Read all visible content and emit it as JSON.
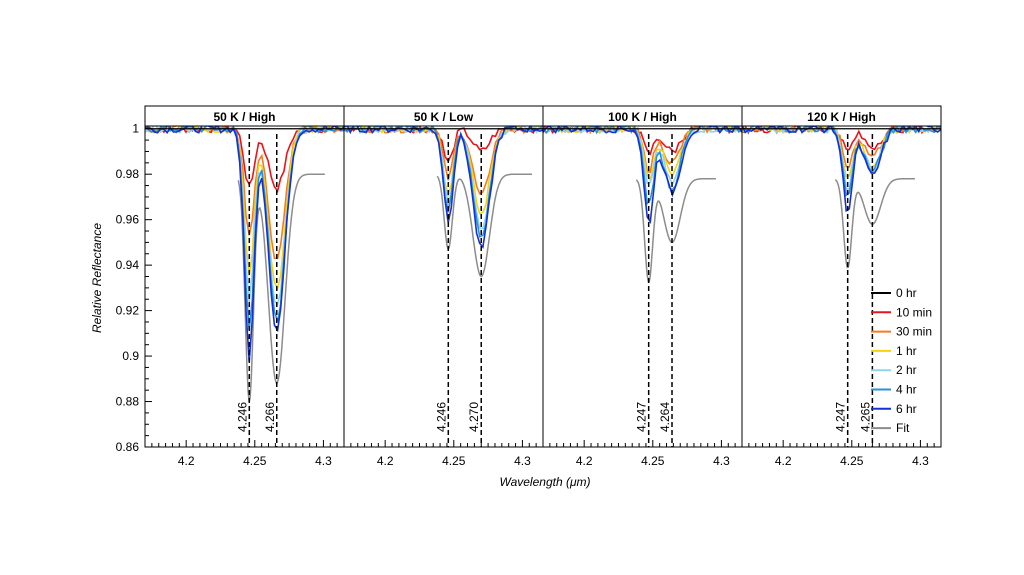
{
  "chart_data": {
    "type": "line",
    "panel_count": 4,
    "ylabel": "Relative Reflectance",
    "xlabel": "Wavelength (μm)",
    "xlim": [
      4.17,
      4.315
    ],
    "ylim": [
      0.86,
      1.01
    ],
    "x_ticks": [
      4.2,
      4.25,
      4.3
    ],
    "x_tick_labels": [
      "4.2",
      "4.25",
      "4.3"
    ],
    "y_ticks": [
      0.86,
      0.88,
      0.9,
      0.92,
      0.94,
      0.96,
      0.98,
      1
    ],
    "y_tick_labels": [
      "0.86",
      "0.88",
      "0.9",
      "0.92",
      "0.94",
      "0.96",
      "0.98",
      "1"
    ],
    "legend": {
      "placement": "bottom-right",
      "entries": [
        {
          "name": "0 hr",
          "color": "#000000"
        },
        {
          "name": "10 min",
          "color": "#e8141b"
        },
        {
          "name": "30 min",
          "color": "#f47b20"
        },
        {
          "name": "1 hr",
          "color": "#f6d312"
        },
        {
          "name": "2 hr",
          "color": "#8ed3f1"
        },
        {
          "name": "4 hr",
          "color": "#2792d6"
        },
        {
          "name": "6 hr",
          "color": "#1432d3"
        },
        {
          "name": "Fit",
          "color": "#8c8c8c"
        }
      ]
    },
    "panels": [
      {
        "title": "50 K / High",
        "peaks": [
          {
            "x": 4.246,
            "label": "4.246"
          },
          {
            "x": 4.266,
            "label": "4.266"
          }
        ],
        "series": [
          {
            "name": "10 min",
            "depths": [
              0.026,
              0.026
            ]
          },
          {
            "name": "30 min",
            "depths": [
              0.048,
              0.058
            ]
          },
          {
            "name": "1 hr",
            "depths": [
              0.064,
              0.072
            ]
          },
          {
            "name": "2 hr",
            "depths": [
              0.075,
              0.079
            ]
          },
          {
            "name": "4 hr",
            "depths": [
              0.088,
              0.085
            ]
          },
          {
            "name": "6 hr",
            "depths": [
              0.101,
              0.089
            ]
          }
        ],
        "fit": {
          "x_start": 4.238,
          "x_end": 4.301,
          "base": 0.98,
          "depths": [
            0.1,
            0.092
          ]
        }
      },
      {
        "title": "50 K / Low",
        "peaks": [
          {
            "x": 4.246,
            "label": "4.246"
          },
          {
            "x": 4.27,
            "label": "4.270"
          }
        ],
        "series": [
          {
            "name": "10 min",
            "depths": [
              0.015,
              0.01
            ]
          },
          {
            "name": "30 min",
            "depths": [
              0.022,
              0.03
            ]
          },
          {
            "name": "1 hr",
            "depths": [
              0.028,
              0.038
            ]
          },
          {
            "name": "2 hr",
            "depths": [
              0.032,
              0.044
            ]
          },
          {
            "name": "4 hr",
            "depths": [
              0.036,
              0.048
            ]
          },
          {
            "name": "6 hr",
            "depths": [
              0.04,
              0.053
            ]
          }
        ],
        "fit": {
          "x_start": 4.238,
          "x_end": 4.307,
          "base": 0.98,
          "depths": [
            0.033,
            0.045
          ]
        }
      },
      {
        "title": "100 K / High",
        "peaks": [
          {
            "x": 4.247,
            "label": "4.247"
          },
          {
            "x": 4.264,
            "label": "4.264"
          }
        ],
        "series": [
          {
            "name": "10 min",
            "depths": [
              0.011,
              0.01
            ]
          },
          {
            "name": "30 min",
            "depths": [
              0.018,
              0.015
            ]
          },
          {
            "name": "1 hr",
            "depths": [
              0.022,
              0.02
            ]
          },
          {
            "name": "2 hr",
            "depths": [
              0.026,
              0.024
            ]
          },
          {
            "name": "4 hr",
            "depths": [
              0.033,
              0.026
            ]
          },
          {
            "name": "6 hr",
            "depths": [
              0.041,
              0.028
            ]
          }
        ],
        "fit": {
          "x_start": 4.238,
          "x_end": 4.296,
          "base": 0.978,
          "depths": [
            0.045,
            0.028
          ]
        }
      },
      {
        "title": "120 K / High",
        "peaks": [
          {
            "x": 4.247,
            "label": "4.247"
          },
          {
            "x": 4.265,
            "label": "4.265"
          }
        ],
        "series": [
          {
            "name": "10 min",
            "depths": [
              0.01,
              0.008
            ]
          },
          {
            "name": "30 min",
            "depths": [
              0.017,
              0.012
            ]
          },
          {
            "name": "1 hr",
            "depths": [
              0.022,
              0.016
            ]
          },
          {
            "name": "2 hr",
            "depths": [
              0.026,
              0.018
            ]
          },
          {
            "name": "4 hr",
            "depths": [
              0.03,
              0.019
            ]
          },
          {
            "name": "6 hr",
            "depths": [
              0.036,
              0.021
            ]
          }
        ],
        "fit": {
          "x_start": 4.238,
          "x_end": 4.296,
          "base": 0.978,
          "depths": [
            0.039,
            0.02
          ]
        }
      }
    ]
  }
}
